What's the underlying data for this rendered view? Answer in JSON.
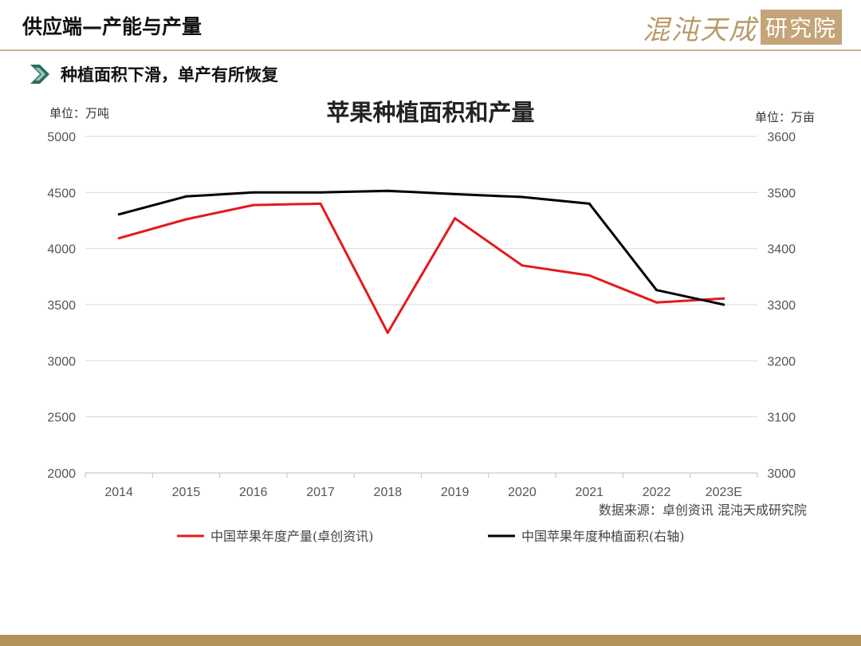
{
  "header": {
    "title": "供应端—产能与产量",
    "brand_name": "混沌天成",
    "brand_box": "研究院"
  },
  "subtitle": "种植面积下滑，单产有所恢复",
  "colors": {
    "production": "#e31a1c",
    "area": "#000000",
    "accent": "#b3915a",
    "chevron": "#2e6a62"
  },
  "icons": {
    "chevron": "chevron-right-icon"
  },
  "chart_data": {
    "type": "line",
    "title": "苹果种植面积和产量",
    "left_unit": "单位：万吨",
    "right_unit": "单位：万亩",
    "categories": [
      "2014",
      "2015",
      "2016",
      "2017",
      "2018",
      "2019",
      "2020",
      "2021",
      "2022",
      "2023E"
    ],
    "ylim_left": [
      2000,
      5000
    ],
    "yticks_left": [
      "5000",
      "4500",
      "4000",
      "3500",
      "3000",
      "2500",
      "2000"
    ],
    "ylim_right": [
      3000,
      3600
    ],
    "yticks_right": [
      "3600",
      "3500",
      "3400",
      "3300",
      "3200",
      "3100",
      "3000"
    ],
    "grid": true,
    "legend_position": "bottom",
    "series": [
      {
        "name": "中国苹果年度产量(卓创资讯)",
        "axis": "left",
        "values": [
          4092,
          4261,
          4388,
          4400,
          3250,
          4270,
          3850,
          3760,
          3520,
          3555
        ]
      },
      {
        "name": "中国苹果年度种植面积(右轴)",
        "axis": "right",
        "values": [
          3461,
          3493,
          3500,
          3500,
          3503,
          3497,
          3492,
          3480,
          3326,
          3300
        ]
      }
    ],
    "source": "数据来源：卓创资讯  混沌天成研究院"
  }
}
